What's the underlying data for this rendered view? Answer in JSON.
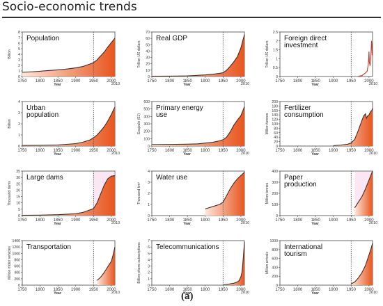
{
  "page_title": "Socio-economic trends",
  "figure_label": "(a)",
  "colors": {
    "dark_line": "#4a2a22",
    "fill_light": "#fde6dc",
    "fill_dark": "#e8561e",
    "pink_band": "#f6d3ea",
    "divider": "#555555"
  },
  "chart_data": [
    {
      "id": "population",
      "type": "area",
      "title": "Population",
      "xlabel": "Year",
      "ylabel": "Billion",
      "ylim": [
        0,
        8
      ],
      "yticks": [
        0,
        1,
        2,
        3,
        4,
        5,
        6,
        7,
        8
      ],
      "yticklabels": [
        "0",
        "1",
        "2",
        "3",
        "4",
        "5",
        "6",
        "7",
        "8"
      ],
      "xticks": [
        "1750",
        "1800",
        "1850",
        "1900",
        "1950",
        "2000"
      ],
      "x_end_label": "2010",
      "marker_year": 1950,
      "x": [
        1750,
        1780,
        1800,
        1820,
        1850,
        1870,
        1900,
        1920,
        1940,
        1950,
        1960,
        1970,
        1980,
        1990,
        2000,
        2010
      ],
      "y": [
        0.75,
        0.85,
        0.95,
        1.05,
        1.2,
        1.3,
        1.55,
        1.8,
        2.25,
        2.5,
        3.0,
        3.7,
        4.4,
        5.3,
        6.1,
        6.9
      ]
    },
    {
      "id": "real-gdp",
      "type": "area",
      "title": "Real GDP",
      "xlabel": "Year",
      "ylabel": "Trillion US dollars",
      "ylim": [
        0,
        70
      ],
      "yticks": [
        0,
        10,
        20,
        30,
        40,
        50,
        60,
        70
      ],
      "yticklabels": [
        "0",
        "10",
        "20",
        "30",
        "40",
        "50",
        "60",
        "70"
      ],
      "xticks": [
        "1750",
        "1800",
        "1850",
        "1900",
        "1950",
        "2000"
      ],
      "x_end_label": "2010",
      "marker_year": 1950,
      "x": [
        1750,
        1800,
        1850,
        1870,
        1900,
        1920,
        1940,
        1950,
        1960,
        1970,
        1980,
        1990,
        2000,
        2010
      ],
      "y": [
        0.5,
        0.7,
        1.0,
        1.5,
        2.5,
        3.5,
        5,
        6,
        10,
        16,
        23,
        31,
        45,
        66
      ]
    },
    {
      "id": "foreign-direct-investment",
      "type": "line",
      "title": "Foreign direct investment",
      "xlabel": "Year",
      "ylabel": "Trillion US dollars",
      "ylim": [
        0,
        2.5
      ],
      "yticks": [
        0,
        0.5,
        1,
        1.5,
        2,
        2.5
      ],
      "yticklabels": [
        "0",
        "0.5",
        "1",
        "1.5",
        "2",
        "2.5"
      ],
      "xticks": [
        "1750",
        "1800",
        "1850",
        "1900",
        "1950",
        "2000"
      ],
      "x_end_label": "2010",
      "marker_year": 1950,
      "x": [
        1970,
        1980,
        1990,
        1995,
        1998,
        2000,
        2001,
        2003,
        2005,
        2007,
        2008,
        2009,
        2010
      ],
      "y": [
        0.01,
        0.05,
        0.2,
        0.3,
        0.7,
        1.4,
        0.8,
        0.6,
        0.95,
        2.0,
        1.8,
        1.2,
        1.3
      ]
    },
    {
      "id": "urban-population",
      "type": "area",
      "title": "Urban population",
      "xlabel": "Year",
      "ylabel": "Billion",
      "ylim": [
        0,
        4
      ],
      "yticks": [
        0,
        1,
        2,
        3,
        4
      ],
      "yticklabels": [
        "0",
        "1",
        "2",
        "3",
        "4"
      ],
      "xticks": [
        "1750",
        "1800",
        "1850",
        "1900",
        "1950",
        "2000"
      ],
      "x_end_label": "2010",
      "marker_year": 1950,
      "x": [
        1750,
        1800,
        1850,
        1900,
        1920,
        1940,
        1950,
        1960,
        1970,
        1980,
        1990,
        2000,
        2010
      ],
      "y": [
        0.05,
        0.07,
        0.1,
        0.22,
        0.35,
        0.55,
        0.75,
        1.0,
        1.35,
        1.75,
        2.25,
        2.85,
        3.5
      ]
    },
    {
      "id": "primary-energy-use",
      "type": "area",
      "title": "Primary energy use",
      "xlabel": "Year",
      "ylabel": "Exajoule (EJ)",
      "ylim": [
        0,
        600
      ],
      "yticks": [
        0,
        100,
        200,
        300,
        400,
        500,
        600
      ],
      "yticklabels": [
        "0",
        "100",
        "200",
        "300",
        "400",
        "500",
        "600"
      ],
      "xticks": [
        "1750",
        "1800",
        "1850",
        "1900",
        "1950",
        "2000"
      ],
      "x_end_label": "2010",
      "marker_year": 1950,
      "x": [
        1750,
        1800,
        1850,
        1880,
        1900,
        1920,
        1940,
        1950,
        1960,
        1970,
        1980,
        1990,
        2000,
        2010
      ],
      "y": [
        20,
        22,
        25,
        30,
        40,
        50,
        70,
        85,
        120,
        190,
        280,
        350,
        410,
        530
      ]
    },
    {
      "id": "fertilizer-consumption",
      "type": "area",
      "title": "Fertilizer consumption",
      "xlabel": "Year",
      "ylabel": "Million tonnes",
      "ylim": [
        0,
        200
      ],
      "yticks": [
        0,
        20,
        40,
        60,
        80,
        100,
        120,
        140,
        160,
        180,
        200
      ],
      "yticklabels": [
        "0",
        "20",
        "40",
        "60",
        "80",
        "100",
        "120",
        "140",
        "160",
        "180",
        "200"
      ],
      "xticks": [
        "1750",
        "1800",
        "1850",
        "1900",
        "1950",
        "2000"
      ],
      "x_end_label": "2010",
      "marker_year": 1950,
      "x": [
        1900,
        1920,
        1940,
        1950,
        1960,
        1970,
        1980,
        1985,
        1990,
        1993,
        1996,
        2000,
        2003,
        2005,
        2008,
        2010
      ],
      "y": [
        2,
        4,
        8,
        14,
        30,
        70,
        115,
        135,
        145,
        125,
        135,
        140,
        150,
        155,
        160,
        170
      ]
    },
    {
      "id": "large-dams",
      "type": "area",
      "title": "Large dams",
      "xlabel": "Year",
      "ylabel": "Thousand dams",
      "ylim": [
        0,
        35
      ],
      "yticks": [
        0,
        5,
        10,
        15,
        20,
        25,
        30,
        35
      ],
      "yticklabels": [
        "0",
        "5",
        "10",
        "15",
        "20",
        "25",
        "30",
        "35"
      ],
      "xticks": [
        "1750",
        "1800",
        "1850",
        "1900",
        "1950",
        "2000"
      ],
      "x_end_label": "2010",
      "marker_year": 1950,
      "pink_band": [
        1950,
        2010
      ],
      "x": [
        1750,
        1800,
        1850,
        1900,
        1920,
        1940,
        1950,
        1960,
        1970,
        1980,
        1990,
        2000,
        2010
      ],
      "y": [
        0.2,
        0.4,
        0.7,
        1.5,
        2.5,
        4.5,
        5.5,
        10,
        17,
        24,
        29,
        31,
        31.5
      ]
    },
    {
      "id": "water-use",
      "type": "area",
      "title": "Water use",
      "xlabel": "Year",
      "ylabel": "Thousand km³",
      "ylim": [
        0,
        4
      ],
      "yticks": [
        0,
        1,
        2,
        3,
        4
      ],
      "yticklabels": [
        "0",
        "1",
        "2",
        "3",
        "4"
      ],
      "xticks": [
        "1750",
        "1800",
        "1850",
        "1900",
        "1950",
        "2000"
      ],
      "x_end_label": "2010",
      "marker_year": 1950,
      "x": [
        1900,
        1920,
        1940,
        1950,
        1960,
        1970,
        1980,
        1990,
        2000,
        2010
      ],
      "y": [
        0.6,
        0.8,
        1.0,
        1.2,
        1.8,
        2.4,
        2.9,
        3.3,
        3.6,
        3.9
      ]
    },
    {
      "id": "paper-production",
      "type": "area",
      "title": "Paper production",
      "xlabel": "Year",
      "ylabel": "Million tonnes",
      "ylim": [
        0,
        400
      ],
      "yticks": [
        0,
        100,
        200,
        300,
        400
      ],
      "yticklabels": [
        "0",
        "100",
        "200",
        "300",
        "400"
      ],
      "xticks": [
        "1750",
        "1800",
        "1850",
        "1900",
        "1950",
        "2000"
      ],
      "x_end_label": "2010",
      "marker_year": 1950,
      "pink_band": [
        1960,
        2010
      ],
      "x": [
        1960,
        1970,
        1980,
        1990,
        2000,
        2005,
        2010
      ],
      "y": [
        70,
        120,
        170,
        240,
        320,
        360,
        400
      ]
    },
    {
      "id": "transportation",
      "type": "area",
      "title": "Transportation",
      "xlabel": "Year",
      "ylabel": "Million motor vehicles",
      "ylim": [
        0,
        1400
      ],
      "yticks": [
        0,
        200,
        400,
        600,
        800,
        1000,
        1200,
        1400
      ],
      "yticklabels": [
        "0",
        "200",
        "400",
        "600",
        "800",
        "1000",
        "1200",
        "1400"
      ],
      "xticks": [
        "1750",
        "1800",
        "1850",
        "1900",
        "1950",
        "2000"
      ],
      "x_end_label": "2010",
      "marker_year": 1950,
      "x": [
        1960,
        1970,
        1980,
        1990,
        2000,
        2005,
        2010
      ],
      "y": [
        150,
        250,
        400,
        580,
        750,
        950,
        1200
      ]
    },
    {
      "id": "telecommunications",
      "type": "area",
      "title": "Telecommunications",
      "xlabel": "Year",
      "ylabel": "Billion phone subscriptions",
      "ylim": [
        0,
        7
      ],
      "yticks": [
        0,
        1,
        2,
        3,
        4,
        5,
        6,
        7
      ],
      "yticklabels": [
        "0",
        "1",
        "2",
        "3",
        "4",
        "5",
        "6",
        "7"
      ],
      "xticks": [
        "1750",
        "1800",
        "1850",
        "1900",
        "1950",
        "2000"
      ],
      "x_end_label": "2010",
      "marker_year": 1950,
      "x": [
        1950,
        1960,
        1970,
        1980,
        1990,
        1995,
        2000,
        2003,
        2005,
        2007,
        2009,
        2010
      ],
      "y": [
        0.05,
        0.1,
        0.2,
        0.3,
        0.5,
        0.7,
        1.3,
        2.0,
        3.0,
        4.5,
        6.0,
        6.8
      ]
    },
    {
      "id": "international-tourism",
      "type": "area",
      "title": "International tourism",
      "xlabel": "Year",
      "ylabel": "Million arrivals",
      "ylim": [
        0,
        1000
      ],
      "yticks": [
        0,
        200,
        400,
        600,
        800,
        1000
      ],
      "yticklabels": [
        "0",
        "200",
        "400",
        "600",
        "800",
        "1000"
      ],
      "xticks": [
        "1750",
        "1800",
        "1850",
        "1900",
        "1950",
        "2000"
      ],
      "x_end_label": "2010",
      "marker_year": 1950,
      "x": [
        1950,
        1960,
        1970,
        1980,
        1990,
        2000,
        2005,
        2010
      ],
      "y": [
        30,
        70,
        160,
        280,
        440,
        680,
        800,
        940
      ]
    }
  ]
}
